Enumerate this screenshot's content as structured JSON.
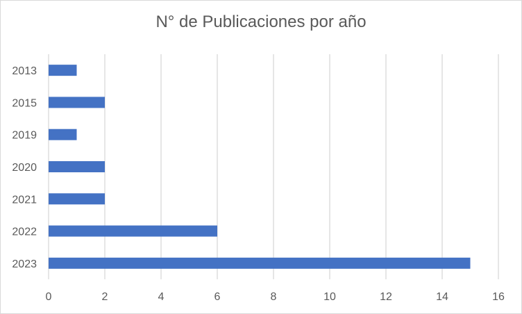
{
  "chart_data": {
    "type": "bar",
    "orientation": "horizontal",
    "title": "N° de Publicaciones por año",
    "categories": [
      "2013",
      "2015",
      "2019",
      "2020",
      "2021",
      "2022",
      "2023"
    ],
    "values": [
      1,
      2,
      1,
      2,
      2,
      6,
      15
    ],
    "xlim": [
      0,
      16
    ],
    "xticks": [
      0,
      2,
      4,
      6,
      8,
      10,
      12,
      14,
      16
    ],
    "xlabel": "",
    "ylabel": "",
    "grid": "vertical",
    "legend": "none",
    "bar_color": "#4472c4",
    "grid_color": "#d9d9d9",
    "text_color": "#595959"
  }
}
